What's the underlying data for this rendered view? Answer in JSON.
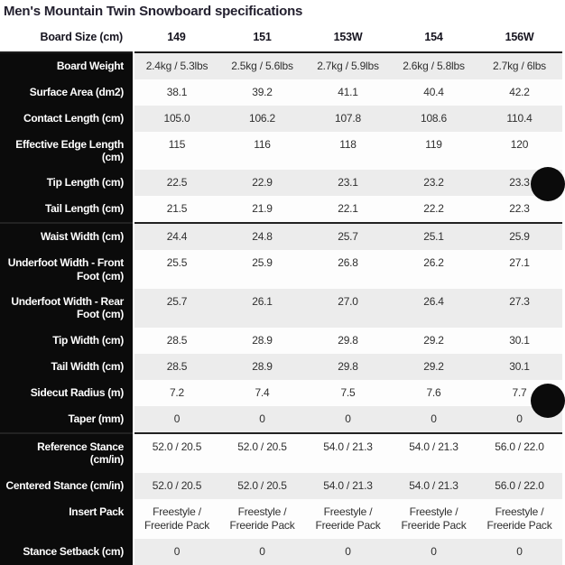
{
  "title": "Men's Mountain Twin Snowboard specifications",
  "table": {
    "header": {
      "label": "Board Size (cm)",
      "sizes": [
        "149",
        "151",
        "153W",
        "154",
        "156W"
      ]
    },
    "rows": [
      {
        "label": "Board Weight",
        "values": [
          "2.4kg / 5.3lbs",
          "2.5kg / 5.6lbs",
          "2.7kg / 5.9lbs",
          "2.6kg / 5.8lbs",
          "2.7kg / 6lbs"
        ]
      },
      {
        "label": "Surface Area (dm2)",
        "values": [
          "38.1",
          "39.2",
          "41.1",
          "40.4",
          "42.2"
        ]
      },
      {
        "label": "Contact Length (cm)",
        "values": [
          "105.0",
          "106.2",
          "107.8",
          "108.6",
          "110.4"
        ]
      },
      {
        "label": "Effective Edge Length (cm)",
        "values": [
          "115",
          "116",
          "118",
          "119",
          "120"
        ]
      },
      {
        "label": "Tip Length (cm)",
        "values": [
          "22.5",
          "22.9",
          "23.1",
          "23.2",
          "23.3"
        ]
      },
      {
        "label": "Tail Length (cm)",
        "values": [
          "21.5",
          "21.9",
          "22.1",
          "22.2",
          "22.3"
        ]
      },
      {
        "label": "Waist Width (cm)",
        "section_start": true,
        "values": [
          "24.4",
          "24.8",
          "25.7",
          "25.1",
          "25.9"
        ]
      },
      {
        "label": "Underfoot Width - Front Foot (cm)",
        "values": [
          "25.5",
          "25.9",
          "26.8",
          "26.2",
          "27.1"
        ]
      },
      {
        "label": "Underfoot Width - Rear Foot (cm)",
        "values": [
          "25.7",
          "26.1",
          "27.0",
          "26.4",
          "27.3"
        ]
      },
      {
        "label": "Tip Width (cm)",
        "values": [
          "28.5",
          "28.9",
          "29.8",
          "29.2",
          "30.1"
        ]
      },
      {
        "label": "Tail Width (cm)",
        "values": [
          "28.5",
          "28.9",
          "29.8",
          "29.2",
          "30.1"
        ]
      },
      {
        "label": "Sidecut Radius (m)",
        "values": [
          "7.2",
          "7.4",
          "7.5",
          "7.6",
          "7.7"
        ]
      },
      {
        "label": "Taper (mm)",
        "values": [
          "0",
          "0",
          "0",
          "0",
          "0"
        ]
      },
      {
        "label": "Reference Stance (cm/in)",
        "section_start": true,
        "values": [
          "52.0 / 20.5",
          "52.0 / 20.5",
          "54.0 / 21.3",
          "54.0 / 21.3",
          "56.0 / 22.0"
        ]
      },
      {
        "label": "Centered Stance (cm/in)",
        "values": [
          "52.0 / 20.5",
          "52.0 / 20.5",
          "54.0 / 21.3",
          "54.0 / 21.3",
          "56.0 / 22.0"
        ]
      },
      {
        "label": "Insert Pack",
        "values": [
          "Freestyle / Freeride Pack",
          "Freestyle / Freeride Pack",
          "Freestyle / Freeride Pack",
          "Freestyle / Freeride Pack",
          "Freestyle / Freeride Pack"
        ]
      },
      {
        "label": "Stance Setback (cm)",
        "values": [
          "0",
          "0",
          "0",
          "0",
          "0"
        ]
      }
    ]
  },
  "colors": {
    "label_column_bg": "#0b0b0b",
    "label_text": "#ffffff",
    "row_gray": "#ececec",
    "row_white": "#fdfdfd",
    "separator": "#1c1c1c",
    "title_text": "#221f2e",
    "value_text": "#2f2f2f",
    "floating_button": "#0b0b0b"
  },
  "widgets": {
    "floating_buttons_visible": 2
  }
}
